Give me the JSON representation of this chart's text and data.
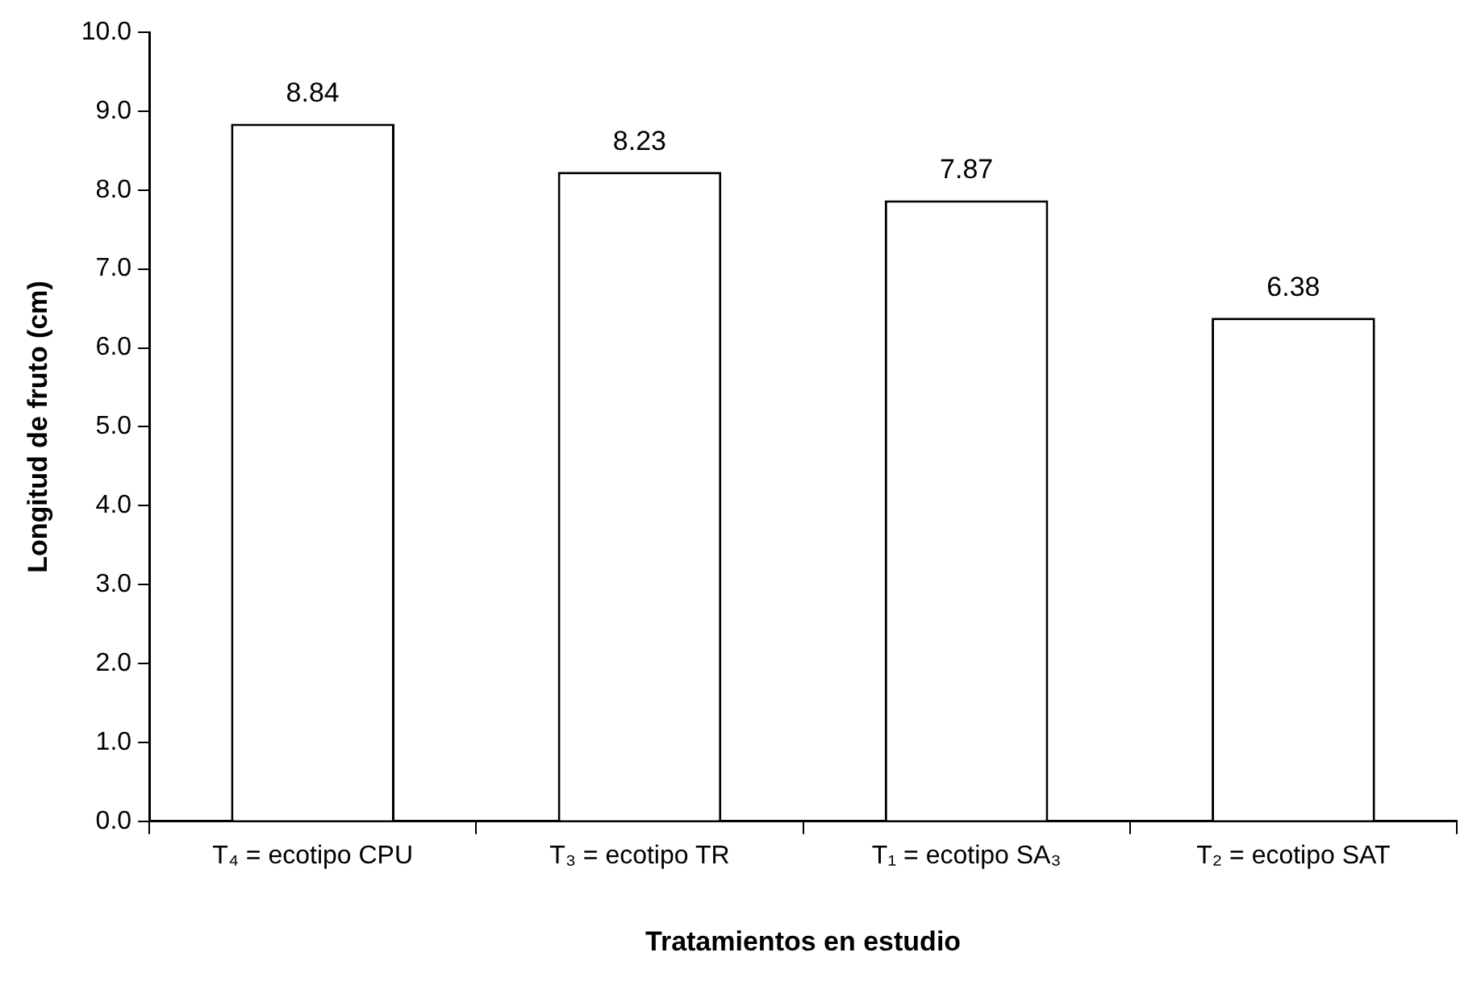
{
  "chart_data": {
    "type": "bar",
    "xlabel": "Tratamientos en estudio",
    "ylabel": "Longitud de fruto (cm)",
    "categories": [
      "T₄ = ecotipo CPU",
      "T₃ = ecotipo TR",
      "T₁ = ecotipo SA₃",
      "T₂ = ecotipo SAT"
    ],
    "values": [
      8.84,
      8.23,
      7.87,
      6.38
    ],
    "color": "#ffffff",
    "ylim": [
      0,
      10
    ],
    "yticks": [
      {
        "value": 0,
        "label": "0.0"
      },
      {
        "value": 1,
        "label": "1.0"
      },
      {
        "value": 2,
        "label": "2.0"
      },
      {
        "value": 3,
        "label": "3.0"
      },
      {
        "value": 4,
        "label": "4.0"
      },
      {
        "value": 5,
        "label": "5.0"
      },
      {
        "value": 6,
        "label": "6.0"
      },
      {
        "value": 7,
        "label": "7.0"
      },
      {
        "value": 8,
        "label": "8.0"
      },
      {
        "value": 9,
        "label": "9.0"
      },
      {
        "value": 10,
        "label": "10.0"
      }
    ],
    "grid": false,
    "legend": false,
    "data_labels": true
  }
}
